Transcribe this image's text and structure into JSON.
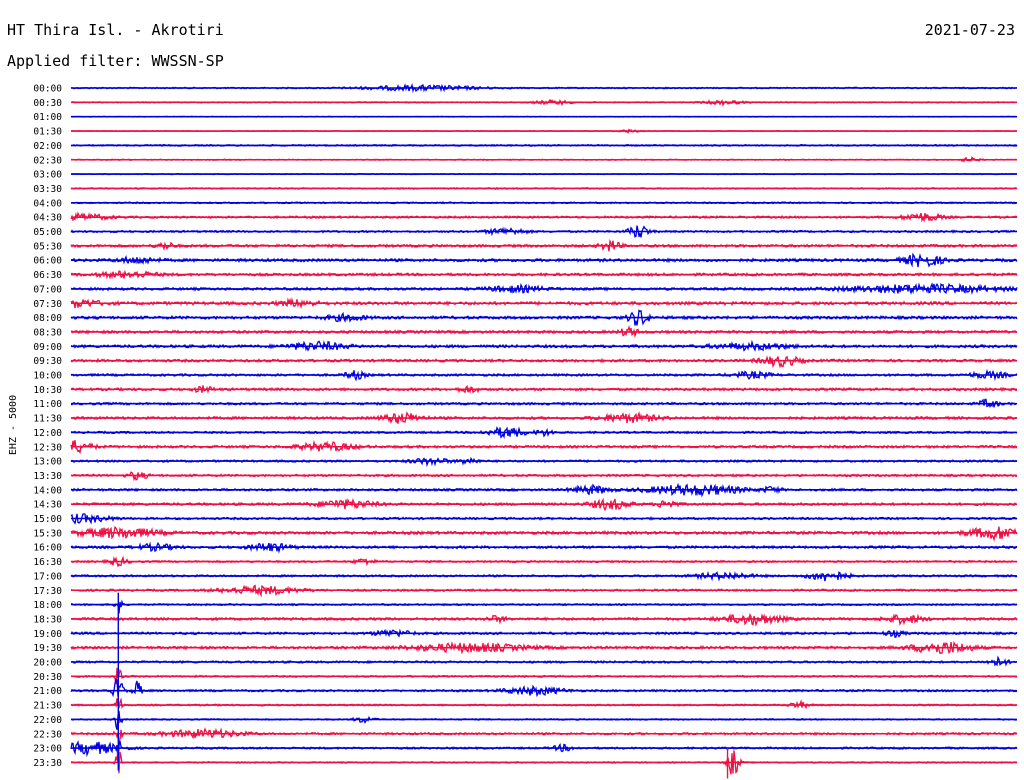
{
  "header": {
    "station": "HT Thira Isl. - Akrotiri",
    "date": "2021-07-23",
    "filter": "Applied filter: WWSSN-SP"
  },
  "chart_data": {
    "type": "line",
    "ylabel": "EHZ - 5000",
    "colors": [
      "#0000dd",
      "#ee0f45"
    ],
    "rows": [
      {
        "label": "00:00",
        "noise": 1.2,
        "events": [
          {
            "t": 0.37,
            "a": 2.5,
            "d": 0.06
          }
        ]
      },
      {
        "label": "00:30",
        "noise": 1.0,
        "events": [
          {
            "t": 0.51,
            "a": 2,
            "d": 0.02
          },
          {
            "t": 0.69,
            "a": 2,
            "d": 0.02
          }
        ]
      },
      {
        "label": "01:00",
        "noise": 0.6,
        "events": []
      },
      {
        "label": "01:30",
        "noise": 0.7,
        "events": [
          {
            "t": 0.59,
            "a": 1.5,
            "d": 0.01
          }
        ]
      },
      {
        "label": "02:00",
        "noise": 1.3,
        "events": []
      },
      {
        "label": "02:30",
        "noise": 0.9,
        "events": [
          {
            "t": 0.95,
            "a": 2,
            "d": 0.01
          }
        ]
      },
      {
        "label": "03:00",
        "noise": 0.8,
        "events": []
      },
      {
        "label": "03:30",
        "noise": 1.2,
        "events": []
      },
      {
        "label": "04:00",
        "noise": 1.3,
        "events": []
      },
      {
        "label": "04:30",
        "noise": 1.8,
        "events": [
          {
            "t": 0.01,
            "a": 3,
            "d": 0.03
          },
          {
            "t": 0.9,
            "a": 4,
            "d": 0.02
          }
        ]
      },
      {
        "label": "05:00",
        "noise": 1.7,
        "events": [
          {
            "t": 0.6,
            "a": 7,
            "d": 0.01
          },
          {
            "t": 0.46,
            "a": 3,
            "d": 0.02
          }
        ]
      },
      {
        "label": "05:30",
        "noise": 2.3,
        "events": [
          {
            "t": 0.57,
            "a": 5,
            "d": 0.01
          },
          {
            "t": 0.1,
            "a": 3,
            "d": 0.01
          }
        ]
      },
      {
        "label": "06:00",
        "noise": 2.5,
        "events": [
          {
            "t": 0.9,
            "a": 6,
            "d": 0.02
          },
          {
            "t": 0.07,
            "a": 3,
            "d": 0.02
          }
        ]
      },
      {
        "label": "06:30",
        "noise": 2.3,
        "events": [
          {
            "t": 0.06,
            "a": 3,
            "d": 0.03
          }
        ]
      },
      {
        "label": "07:00",
        "noise": 2.2,
        "events": [
          {
            "t": 0.9,
            "a": 4,
            "d": 0.08
          },
          {
            "t": 0.47,
            "a": 3,
            "d": 0.03
          }
        ]
      },
      {
        "label": "07:30",
        "noise": 2.6,
        "events": [
          {
            "t": 0.0,
            "a": 4,
            "d": 0.03
          },
          {
            "t": 0.24,
            "a": 3,
            "d": 0.02
          }
        ]
      },
      {
        "label": "08:00",
        "noise": 2.5,
        "events": [
          {
            "t": 0.6,
            "a": 8,
            "d": 0.01
          },
          {
            "t": 0.29,
            "a": 3,
            "d": 0.02
          }
        ]
      },
      {
        "label": "08:30",
        "noise": 2.4,
        "events": [
          {
            "t": 0.59,
            "a": 4,
            "d": 0.01
          }
        ]
      },
      {
        "label": "09:00",
        "noise": 2.4,
        "events": [
          {
            "t": 0.26,
            "a": 4,
            "d": 0.03
          },
          {
            "t": 0.72,
            "a": 3,
            "d": 0.04
          }
        ]
      },
      {
        "label": "09:30",
        "noise": 2.3,
        "events": [
          {
            "t": 0.75,
            "a": 5,
            "d": 0.02
          }
        ]
      },
      {
        "label": "10:00",
        "noise": 2.0,
        "events": [
          {
            "t": 0.3,
            "a": 4,
            "d": 0.01
          },
          {
            "t": 0.72,
            "a": 3,
            "d": 0.02
          },
          {
            "t": 0.97,
            "a": 3,
            "d": 0.02
          }
        ]
      },
      {
        "label": "10:30",
        "noise": 2.2,
        "events": [
          {
            "t": 0.14,
            "a": 3,
            "d": 0.01
          },
          {
            "t": 0.42,
            "a": 3,
            "d": 0.01
          }
        ]
      },
      {
        "label": "11:00",
        "noise": 2.0,
        "events": [
          {
            "t": 0.97,
            "a": 4,
            "d": 0.01
          }
        ]
      },
      {
        "label": "11:30",
        "noise": 2.3,
        "events": [
          {
            "t": 0.35,
            "a": 5,
            "d": 0.02
          },
          {
            "t": 0.59,
            "a": 4,
            "d": 0.03
          }
        ]
      },
      {
        "label": "12:00",
        "noise": 1.8,
        "events": [
          {
            "t": 0.46,
            "a": 5,
            "d": 0.02
          },
          {
            "t": 0.5,
            "a": 3,
            "d": 0.01
          }
        ]
      },
      {
        "label": "12:30",
        "noise": 2.2,
        "events": [
          {
            "t": 0.0,
            "a": 6,
            "d": 0.02
          },
          {
            "t": 0.27,
            "a": 4,
            "d": 0.03
          }
        ]
      },
      {
        "label": "13:00",
        "noise": 1.8,
        "events": [
          {
            "t": 0.38,
            "a": 3,
            "d": 0.02
          },
          {
            "t": 0.42,
            "a": 3,
            "d": 0.01
          }
        ]
      },
      {
        "label": "13:30",
        "noise": 1.9,
        "events": [
          {
            "t": 0.07,
            "a": 4,
            "d": 0.01
          }
        ]
      },
      {
        "label": "14:00",
        "noise": 2.0,
        "events": [
          {
            "t": 0.55,
            "a": 4,
            "d": 0.02
          },
          {
            "t": 0.66,
            "a": 5,
            "d": 0.05
          },
          {
            "t": 0.74,
            "a": 3,
            "d": 0.01
          }
        ]
      },
      {
        "label": "14:30",
        "noise": 2.2,
        "events": [
          {
            "t": 0.29,
            "a": 4,
            "d": 0.03
          },
          {
            "t": 0.57,
            "a": 5,
            "d": 0.02
          },
          {
            "t": 0.63,
            "a": 4,
            "d": 0.01
          }
        ]
      },
      {
        "label": "15:00",
        "noise": 1.9,
        "events": [
          {
            "t": 0.01,
            "a": 4,
            "d": 0.03
          }
        ]
      },
      {
        "label": "15:30",
        "noise": 2.5,
        "events": [
          {
            "t": 0.05,
            "a": 5,
            "d": 0.04
          },
          {
            "t": 0.98,
            "a": 6,
            "d": 0.03
          }
        ]
      },
      {
        "label": "16:00",
        "noise": 2.2,
        "events": [
          {
            "t": 0.21,
            "a": 4,
            "d": 0.02
          },
          {
            "t": 0.09,
            "a": 3,
            "d": 0.02
          }
        ]
      },
      {
        "label": "16:30",
        "noise": 1.6,
        "events": [
          {
            "t": 0.05,
            "a": 4,
            "d": 0.01
          },
          {
            "t": 0.31,
            "a": 3,
            "d": 0.01
          }
        ]
      },
      {
        "label": "17:00",
        "noise": 1.7,
        "events": [
          {
            "t": 0.8,
            "a": 5,
            "d": 0.02
          },
          {
            "t": 0.69,
            "a": 3,
            "d": 0.03
          }
        ]
      },
      {
        "label": "17:30",
        "noise": 1.8,
        "events": [
          {
            "t": 0.2,
            "a": 4,
            "d": 0.04
          }
        ]
      },
      {
        "label": "18:00",
        "noise": 1.5,
        "events": [
          {
            "t": 0.05,
            "a": 14,
            "d": 0.003
          }
        ]
      },
      {
        "label": "18:30",
        "noise": 2.2,
        "events": [
          {
            "t": 0.72,
            "a": 5,
            "d": 0.03
          },
          {
            "t": 0.88,
            "a": 4,
            "d": 0.02
          },
          {
            "t": 0.45,
            "a": 3,
            "d": 0.01
          }
        ]
      },
      {
        "label": "19:00",
        "noise": 2.0,
        "events": [
          {
            "t": 0.34,
            "a": 3,
            "d": 0.02
          },
          {
            "t": 0.87,
            "a": 3,
            "d": 0.01
          }
        ]
      },
      {
        "label": "19:30",
        "noise": 2.3,
        "events": [
          {
            "t": 0.42,
            "a": 4,
            "d": 0.06
          },
          {
            "t": 0.92,
            "a": 6,
            "d": 0.03
          }
        ]
      },
      {
        "label": "20:00",
        "noise": 1.8,
        "events": [
          {
            "t": 0.98,
            "a": 4,
            "d": 0.01
          }
        ]
      },
      {
        "label": "20:30",
        "noise": 1.5,
        "events": [
          {
            "t": 0.05,
            "a": 14,
            "d": 0.003
          }
        ]
      },
      {
        "label": "21:00",
        "noise": 1.8,
        "events": [
          {
            "t": 0.05,
            "a": 14,
            "d": 0.005
          },
          {
            "t": 0.07,
            "a": 10,
            "d": 0.004
          },
          {
            "t": 0.49,
            "a": 4,
            "d": 0.03
          }
        ]
      },
      {
        "label": "21:30",
        "noise": 1.5,
        "events": [
          {
            "t": 0.05,
            "a": 14,
            "d": 0.003
          },
          {
            "t": 0.77,
            "a": 3,
            "d": 0.01
          }
        ]
      },
      {
        "label": "22:00",
        "noise": 1.2,
        "events": [
          {
            "t": 0.05,
            "a": 14,
            "d": 0.003
          },
          {
            "t": 0.31,
            "a": 3,
            "d": 0.01
          }
        ]
      },
      {
        "label": "22:30",
        "noise": 1.9,
        "events": [
          {
            "t": 0.05,
            "a": 14,
            "d": 0.003
          },
          {
            "t": 0.14,
            "a": 4,
            "d": 0.04
          }
        ]
      },
      {
        "label": "23:00",
        "noise": 1.7,
        "events": [
          {
            "t": 0.05,
            "a": 14,
            "d": 0.003
          },
          {
            "t": 0.02,
            "a": 6,
            "d": 0.03
          },
          {
            "t": 0.52,
            "a": 3,
            "d": 0.01
          }
        ]
      },
      {
        "label": "23:30",
        "noise": 1.2,
        "events": [
          {
            "t": 0.05,
            "a": 14,
            "d": 0.003
          },
          {
            "t": 0.7,
            "a": 14,
            "d": 0.006
          }
        ]
      }
    ]
  }
}
